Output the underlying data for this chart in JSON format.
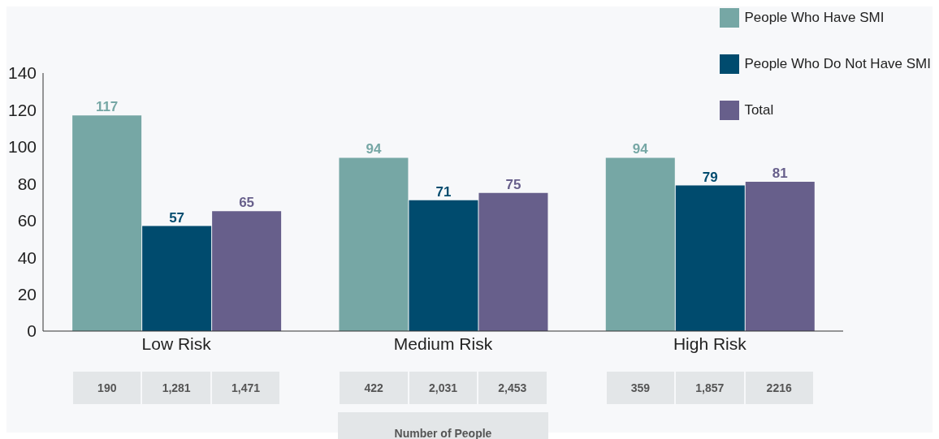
{
  "chart_data": {
    "type": "bar",
    "categories": [
      "Low Risk",
      "Medium Risk",
      "High Risk"
    ],
    "series": [
      {
        "name": "People Who Have SMI",
        "color": "#76a7a5",
        "values": [
          117,
          94,
          94
        ]
      },
      {
        "name": "People Who Do Not Have SMI",
        "color": "#004b6e",
        "values": [
          57,
          71,
          79
        ]
      },
      {
        "name": "Total",
        "color": "#675f8b",
        "values": [
          65,
          75,
          81
        ]
      }
    ],
    "ylim": [
      0,
      140
    ],
    "yticks": [
      0,
      20,
      40,
      60,
      80,
      100,
      120,
      140
    ],
    "grid": false,
    "legend": "top right",
    "data_labels": true,
    "annotations": [
      "190",
      "1,281",
      "1,471",
      "422",
      "2,031",
      "2,453",
      "359",
      "1,857",
      "2216",
      "Number of People"
    ]
  }
}
